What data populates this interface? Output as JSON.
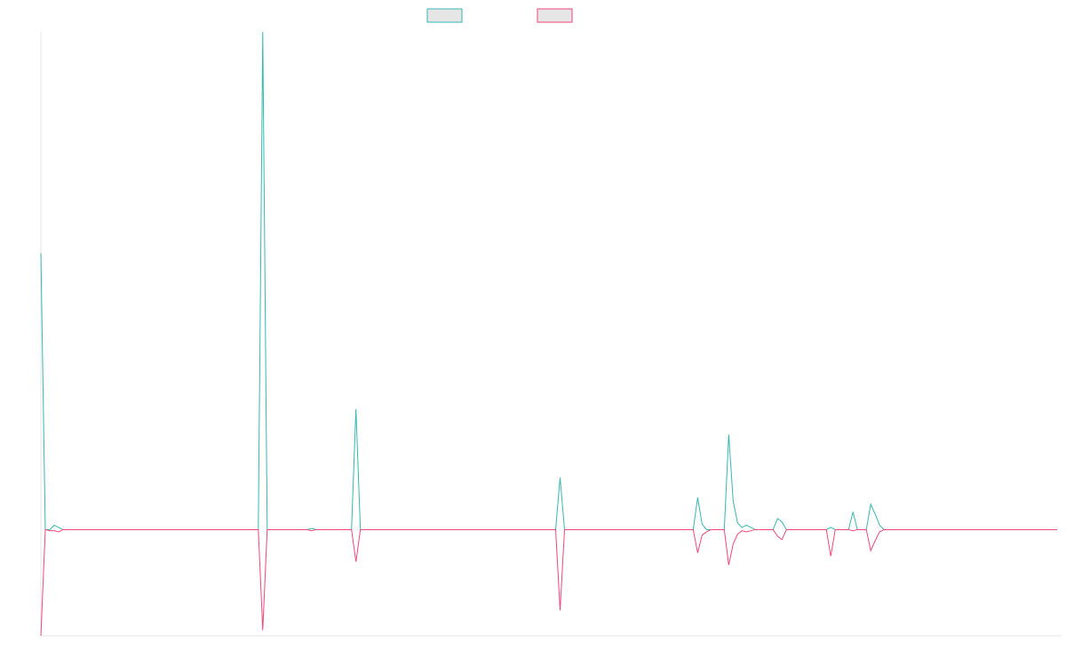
{
  "colors": {
    "series_a": "#36b8b0",
    "series_b": "#f0467a",
    "axis": "#e6e6e6",
    "legend_fill": "#e6e6e6"
  },
  "chart_data": {
    "type": "line",
    "x": [
      0,
      1,
      2,
      3,
      4,
      5,
      6,
      7,
      8,
      9,
      10,
      11,
      12,
      13,
      14,
      15,
      16,
      17,
      18,
      19,
      20,
      21,
      22,
      23,
      24,
      25,
      26,
      27,
      28,
      29,
      30,
      31,
      32,
      33,
      34,
      35,
      36,
      37,
      38,
      39,
      40,
      41,
      42,
      43,
      44,
      45,
      46,
      47,
      48,
      49,
      50,
      51,
      52,
      53,
      54,
      55,
      56,
      57,
      58,
      59,
      60,
      61,
      62,
      63,
      64,
      65,
      66,
      67,
      68,
      69,
      70,
      71,
      72,
      73,
      74,
      75,
      76,
      77,
      78,
      79,
      80,
      81,
      82,
      83,
      84,
      85,
      86,
      87,
      88,
      89,
      90,
      91,
      92,
      93,
      94,
      95,
      96,
      97,
      98,
      99,
      100,
      101,
      102,
      103,
      104,
      105,
      106,
      107,
      108,
      109,
      110,
      111,
      112,
      113,
      114,
      115,
      116,
      117,
      118,
      119,
      120,
      121,
      122,
      123,
      124,
      125,
      126,
      127,
      128,
      129,
      130,
      131,
      132,
      133,
      134,
      135,
      136,
      137,
      138,
      139,
      140,
      141,
      142,
      143,
      144,
      145,
      146,
      147,
      148,
      149,
      150,
      151,
      152,
      153,
      154,
      155,
      156,
      157,
      158,
      159,
      160,
      161,
      162,
      163,
      164,
      165,
      166,
      167,
      168,
      169,
      170,
      171,
      172,
      173,
      174,
      175,
      176,
      177,
      178,
      179,
      180,
      181,
      182,
      183,
      184,
      185,
      186,
      187,
      188,
      189,
      190,
      191,
      192,
      193,
      194,
      195,
      196,
      197,
      198,
      199,
      200,
      201,
      202,
      203,
      204,
      205,
      206,
      207,
      208,
      209,
      210,
      211,
      212,
      213,
      214,
      215,
      216,
      217,
      218,
      219,
      220,
      221,
      222,
      223,
      224,
      225,
      226,
      227,
      228,
      229
    ],
    "series": [
      {
        "values": [
          250,
          0,
          0,
          4,
          2,
          0,
          0,
          0,
          0,
          0,
          0,
          0,
          0,
          0,
          0,
          0,
          0,
          0,
          0,
          0,
          0,
          0,
          0,
          0,
          0,
          0,
          0,
          0,
          0,
          0,
          0,
          0,
          0,
          0,
          0,
          0,
          0,
          0,
          0,
          0,
          0,
          0,
          0,
          0,
          0,
          0,
          0,
          0,
          0,
          0,
          450,
          0,
          0,
          0,
          0,
          0,
          0,
          0,
          0,
          0,
          0,
          1,
          0,
          0,
          0,
          0,
          0,
          0,
          0,
          0,
          0,
          109,
          0,
          0,
          0,
          0,
          0,
          0,
          0,
          0,
          0,
          0,
          0,
          0,
          0,
          0,
          0,
          0,
          0,
          0,
          0,
          0,
          0,
          0,
          0,
          0,
          0,
          0,
          0,
          0,
          0,
          0,
          0,
          0,
          0,
          0,
          0,
          0,
          0,
          0,
          0,
          0,
          0,
          0,
          0,
          0,
          0,
          47,
          0,
          0,
          0,
          0,
          0,
          0,
          0,
          0,
          0,
          0,
          0,
          0,
          0,
          0,
          0,
          0,
          0,
          0,
          0,
          0,
          0,
          0,
          0,
          0,
          0,
          0,
          0,
          0,
          0,
          0,
          29,
          5,
          0,
          0,
          0,
          0,
          0,
          86,
          26,
          6,
          2,
          4,
          2,
          0,
          0,
          0,
          0,
          0,
          10,
          7,
          0,
          0,
          0,
          0,
          0,
          0,
          0,
          0,
          0,
          0,
          2,
          0,
          0,
          0,
          0,
          16,
          0,
          0,
          0,
          23,
          14,
          4,
          0,
          0,
          0,
          0,
          0,
          0,
          0,
          0,
          0,
          0,
          0,
          0,
          0,
          0,
          0,
          0,
          0,
          0,
          0,
          0,
          0,
          0,
          0,
          0,
          0,
          0,
          0,
          0,
          0,
          0,
          0,
          0,
          0,
          0,
          0,
          0,
          0,
          0,
          0,
          0
        ]
      },
      {
        "values": [
          -96,
          0,
          -1,
          -1,
          -2,
          0,
          0,
          0,
          0,
          0,
          0,
          0,
          0,
          0,
          0,
          0,
          0,
          0,
          0,
          0,
          0,
          0,
          0,
          0,
          0,
          0,
          0,
          0,
          0,
          0,
          0,
          0,
          0,
          0,
          0,
          0,
          0,
          0,
          0,
          0,
          0,
          0,
          0,
          0,
          0,
          0,
          0,
          0,
          0,
          0,
          -91,
          0,
          0,
          0,
          0,
          0,
          0,
          0,
          0,
          0,
          0,
          -1,
          0,
          0,
          0,
          0,
          0,
          0,
          0,
          0,
          0,
          -29,
          0,
          0,
          0,
          0,
          0,
          0,
          0,
          0,
          0,
          0,
          0,
          0,
          0,
          0,
          0,
          0,
          0,
          0,
          0,
          0,
          0,
          0,
          0,
          0,
          0,
          0,
          0,
          0,
          0,
          0,
          0,
          0,
          0,
          0,
          0,
          0,
          0,
          0,
          0,
          0,
          0,
          0,
          0,
          0,
          0,
          -73,
          0,
          0,
          0,
          0,
          0,
          0,
          0,
          0,
          0,
          0,
          0,
          0,
          0,
          0,
          0,
          0,
          0,
          0,
          0,
          0,
          0,
          0,
          0,
          0,
          0,
          0,
          0,
          0,
          0,
          0,
          -21,
          -5,
          -2,
          0,
          0,
          0,
          0,
          -32,
          -13,
          -4,
          -1,
          -2,
          -1,
          0,
          0,
          0,
          0,
          0,
          -6,
          -9,
          0,
          0,
          0,
          0,
          0,
          0,
          0,
          0,
          0,
          0,
          -24,
          0,
          0,
          0,
          0,
          -1,
          0,
          0,
          0,
          -19,
          -10,
          -2,
          0,
          0,
          0,
          0,
          0,
          0,
          0,
          0,
          0,
          0,
          0,
          0,
          0,
          0,
          0,
          0,
          0,
          0,
          0,
          0,
          0,
          0,
          0,
          0,
          0,
          0,
          0,
          0,
          0,
          0,
          0,
          0,
          0,
          0,
          0,
          0,
          0,
          0,
          0,
          0
        ]
      }
    ],
    "xlim": [
      0,
      230
    ],
    "ylim": [
      -96,
      450
    ],
    "grid": false,
    "legend": "top-center",
    "xlabel": "",
    "ylabel": "",
    "title": ""
  }
}
